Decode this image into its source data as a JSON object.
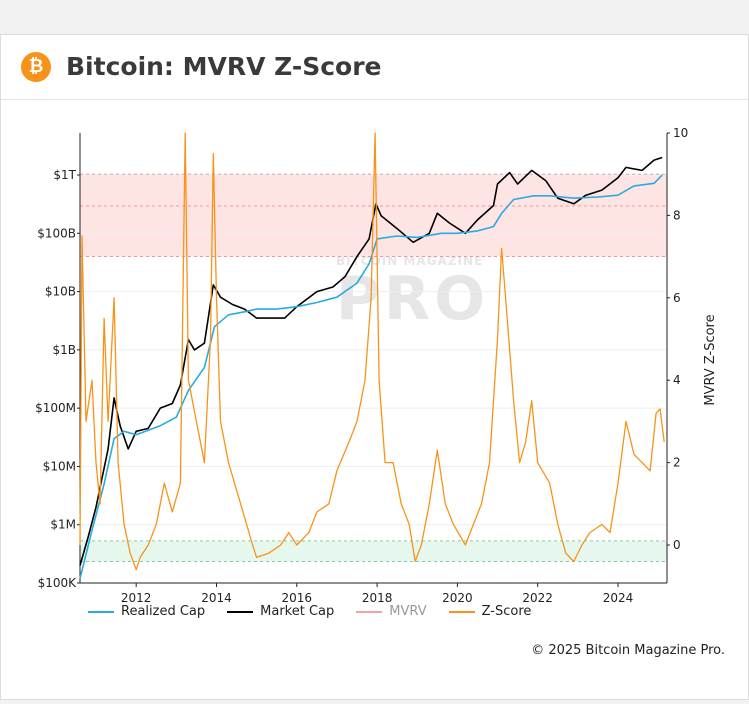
{
  "header": {
    "btc_symbol": "₿",
    "title": "Bitcoin: MVRV Z-Score"
  },
  "watermark": {
    "top": "BITCOIN MAGAZINE",
    "big": "PRO"
  },
  "legend": [
    {
      "label": "Realized Cap",
      "color": "#29abe2"
    },
    {
      "label": "Market Cap",
      "color": "#000000"
    },
    {
      "label": "MVRV",
      "color": "#f4a3a3"
    },
    {
      "label": "Z-Score",
      "color": "#f7931a"
    }
  ],
  "copyright": "© 2025 Bitcoin Magazine Pro.",
  "chart_data": {
    "type": "line",
    "y_left_scale": "log",
    "y_left_ticks": [
      "$100K",
      "$1M",
      "$10M",
      "$100M",
      "$1B",
      "$10B",
      "$100B",
      "$1T"
    ],
    "y_right_label": "MVRV Z-Score",
    "y_right_ticks": [
      "0",
      "2",
      "4",
      "6",
      "8",
      "10"
    ],
    "y_right_range": [
      -0.8,
      10
    ],
    "x_ticks": [
      "2012",
      "2014",
      "2016",
      "2018",
      "2020",
      "2022",
      "2024"
    ],
    "x_range": [
      2010.6,
      2025.3
    ],
    "zones": [
      {
        "name": "overvalued",
        "from": 7,
        "to": 9,
        "color": "#ffe4e4"
      },
      {
        "name": "undervalued",
        "from": -0.4,
        "to": 0.1,
        "color": "#e6f7ee"
      }
    ],
    "grid": true,
    "series": [
      {
        "name": "Market Cap",
        "color": "#000000",
        "axis": "left",
        "points": [
          [
            2010.6,
            200000
          ],
          [
            2010.8,
            600000
          ],
          [
            2011.0,
            2000000
          ],
          [
            2011.3,
            20000000
          ],
          [
            2011.45,
            150000000
          ],
          [
            2011.6,
            50000000
          ],
          [
            2011.8,
            20000000
          ],
          [
            2012.0,
            40000000
          ],
          [
            2012.3,
            45000000
          ],
          [
            2012.6,
            100000000
          ],
          [
            2012.9,
            120000000
          ],
          [
            2013.1,
            250000000
          ],
          [
            2013.3,
            1500000000
          ],
          [
            2013.45,
            1000000000
          ],
          [
            2013.7,
            1300000000
          ],
          [
            2013.92,
            13000000000
          ],
          [
            2014.1,
            8000000000
          ],
          [
            2014.4,
            6000000000
          ],
          [
            2014.7,
            5000000000
          ],
          [
            2015.0,
            3500000000
          ],
          [
            2015.3,
            3500000000
          ],
          [
            2015.7,
            3500000000
          ],
          [
            2016.0,
            5500000000
          ],
          [
            2016.5,
            10000000000
          ],
          [
            2016.9,
            12000000000
          ],
          [
            2017.2,
            18000000000
          ],
          [
            2017.5,
            40000000000
          ],
          [
            2017.8,
            80000000000
          ],
          [
            2017.97,
            320000000000
          ],
          [
            2018.1,
            200000000000
          ],
          [
            2018.5,
            120000000000
          ],
          [
            2018.9,
            70000000000
          ],
          [
            2019.3,
            100000000000
          ],
          [
            2019.5,
            220000000000
          ],
          [
            2019.8,
            150000000000
          ],
          [
            2020.2,
            100000000000
          ],
          [
            2020.5,
            170000000000
          ],
          [
            2020.9,
            300000000000
          ],
          [
            2021.0,
            700000000000
          ],
          [
            2021.3,
            1100000000000
          ],
          [
            2021.5,
            700000000000
          ],
          [
            2021.85,
            1200000000000
          ],
          [
            2022.2,
            800000000000
          ],
          [
            2022.5,
            400000000000
          ],
          [
            2022.9,
            320000000000
          ],
          [
            2023.2,
            450000000000
          ],
          [
            2023.6,
            550000000000
          ],
          [
            2024.0,
            900000000000
          ],
          [
            2024.2,
            1350000000000
          ],
          [
            2024.6,
            1200000000000
          ],
          [
            2024.9,
            1800000000000
          ],
          [
            2025.1,
            2000000000000
          ]
        ]
      },
      {
        "name": "Realized Cap",
        "color": "#29abe2",
        "axis": "left",
        "points": [
          [
            2010.6,
            120000
          ],
          [
            2010.9,
            800000
          ],
          [
            2011.2,
            5000000
          ],
          [
            2011.45,
            30000000
          ],
          [
            2011.7,
            40000000
          ],
          [
            2012.0,
            35000000
          ],
          [
            2012.6,
            50000000
          ],
          [
            2013.0,
            70000000
          ],
          [
            2013.3,
            200000000
          ],
          [
            2013.7,
            500000000
          ],
          [
            2013.95,
            2500000000
          ],
          [
            2014.3,
            4000000000
          ],
          [
            2014.7,
            4500000000
          ],
          [
            2015.0,
            5000000000
          ],
          [
            2015.5,
            5000000000
          ],
          [
            2016.0,
            5500000000
          ],
          [
            2016.5,
            6500000000
          ],
          [
            2017.0,
            8000000000
          ],
          [
            2017.5,
            14000000000
          ],
          [
            2017.8,
            30000000000
          ],
          [
            2018.0,
            80000000000
          ],
          [
            2018.5,
            90000000000
          ],
          [
            2019.0,
            85000000000
          ],
          [
            2019.6,
            100000000000
          ],
          [
            2020.0,
            100000000000
          ],
          [
            2020.5,
            110000000000
          ],
          [
            2020.9,
            130000000000
          ],
          [
            2021.1,
            220000000000
          ],
          [
            2021.4,
            380000000000
          ],
          [
            2021.9,
            440000000000
          ],
          [
            2022.3,
            440000000000
          ],
          [
            2022.9,
            400000000000
          ],
          [
            2023.5,
            420000000000
          ],
          [
            2024.0,
            450000000000
          ],
          [
            2024.4,
            650000000000
          ],
          [
            2024.9,
            720000000000
          ],
          [
            2025.1,
            1000000000000
          ]
        ]
      },
      {
        "name": "Z-Score",
        "color": "#f7931a",
        "axis": "right",
        "points": [
          [
            2010.6,
            0
          ],
          [
            2010.65,
            7.5
          ],
          [
            2010.75,
            3
          ],
          [
            2010.9,
            4
          ],
          [
            2011.0,
            2
          ],
          [
            2011.1,
            1
          ],
          [
            2011.2,
            5.5
          ],
          [
            2011.3,
            3
          ],
          [
            2011.45,
            6
          ],
          [
            2011.55,
            2
          ],
          [
            2011.7,
            0.5
          ],
          [
            2011.85,
            -0.2
          ],
          [
            2012.0,
            -0.6
          ],
          [
            2012.1,
            -0.3
          ],
          [
            2012.3,
            0
          ],
          [
            2012.5,
            0.5
          ],
          [
            2012.7,
            1.5
          ],
          [
            2012.9,
            0.8
          ],
          [
            2013.1,
            1.5
          ],
          [
            2013.22,
            10
          ],
          [
            2013.3,
            4
          ],
          [
            2013.5,
            3
          ],
          [
            2013.7,
            2
          ],
          [
            2013.85,
            5
          ],
          [
            2013.92,
            9.5
          ],
          [
            2014.0,
            6
          ],
          [
            2014.1,
            3
          ],
          [
            2014.3,
            2
          ],
          [
            2014.6,
            1
          ],
          [
            2014.9,
            0
          ],
          [
            2015.0,
            -0.3
          ],
          [
            2015.3,
            -0.2
          ],
          [
            2015.6,
            0
          ],
          [
            2015.8,
            0.3
          ],
          [
            2016.0,
            0
          ],
          [
            2016.3,
            0.3
          ],
          [
            2016.5,
            0.8
          ],
          [
            2016.8,
            1
          ],
          [
            2017.0,
            1.8
          ],
          [
            2017.3,
            2.5
          ],
          [
            2017.5,
            3
          ],
          [
            2017.7,
            4
          ],
          [
            2017.85,
            6
          ],
          [
            2017.95,
            10
          ],
          [
            2018.05,
            4
          ],
          [
            2018.2,
            2
          ],
          [
            2018.4,
            2
          ],
          [
            2018.6,
            1
          ],
          [
            2018.8,
            0.5
          ],
          [
            2018.95,
            -0.4
          ],
          [
            2019.1,
            0
          ],
          [
            2019.3,
            1
          ],
          [
            2019.5,
            2.3
          ],
          [
            2019.7,
            1
          ],
          [
            2019.9,
            0.5
          ],
          [
            2020.2,
            0
          ],
          [
            2020.4,
            0.5
          ],
          [
            2020.6,
            1
          ],
          [
            2020.8,
            2
          ],
          [
            2021.0,
            5
          ],
          [
            2021.1,
            7.2
          ],
          [
            2021.2,
            6
          ],
          [
            2021.4,
            3.5
          ],
          [
            2021.55,
            2
          ],
          [
            2021.7,
            2.5
          ],
          [
            2021.85,
            3.5
          ],
          [
            2022.0,
            2
          ],
          [
            2022.3,
            1.5
          ],
          [
            2022.5,
            0.5
          ],
          [
            2022.7,
            -0.2
          ],
          [
            2022.9,
            -0.4
          ],
          [
            2023.1,
            0
          ],
          [
            2023.3,
            0.3
          ],
          [
            2023.6,
            0.5
          ],
          [
            2023.8,
            0.3
          ],
          [
            2024.0,
            1.5
          ],
          [
            2024.2,
            3
          ],
          [
            2024.4,
            2.2
          ],
          [
            2024.6,
            2
          ],
          [
            2024.8,
            1.8
          ],
          [
            2024.95,
            3.2
          ],
          [
            2025.05,
            3.3
          ],
          [
            2025.15,
            2.5
          ]
        ]
      }
    ]
  }
}
